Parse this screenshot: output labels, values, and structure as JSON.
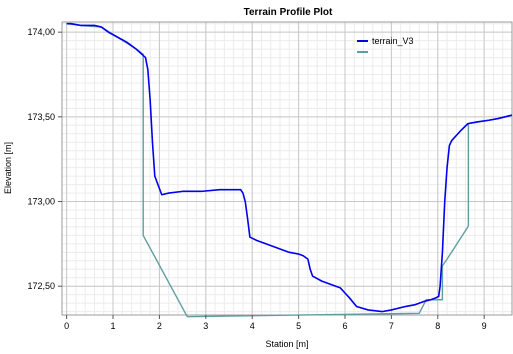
{
  "chart_data": {
    "type": "line",
    "title": "Terrain Profile Plot",
    "xlabel": "Station [m]",
    "ylabel": "Elevation [m]",
    "xlim": [
      -0.1,
      9.6
    ],
    "ylim": [
      172.33,
      174.06
    ],
    "x_ticks": [
      0,
      1,
      2,
      3,
      4,
      5,
      6,
      7,
      8,
      9
    ],
    "x_tick_labels": [
      "0",
      "1",
      "2",
      "3",
      "4",
      "5",
      "6",
      "7",
      "8",
      "9"
    ],
    "y_ticks": [
      172.5,
      173.0,
      173.5,
      174.0
    ],
    "y_tick_labels": [
      "172,50",
      "173,00",
      "173,50",
      "174,00"
    ],
    "grid": true,
    "legend_position": "top-right",
    "series": [
      {
        "name": "terrain_V3",
        "color": "#0000ee",
        "points": [
          [
            0.0,
            174.05
          ],
          [
            0.1,
            174.05
          ],
          [
            0.3,
            174.04
          ],
          [
            0.6,
            174.04
          ],
          [
            0.75,
            174.03
          ],
          [
            0.9,
            174.0
          ],
          [
            1.1,
            173.97
          ],
          [
            1.3,
            173.94
          ],
          [
            1.5,
            173.9
          ],
          [
            1.62,
            173.87
          ],
          [
            1.7,
            173.85
          ],
          [
            1.75,
            173.78
          ],
          [
            1.8,
            173.6
          ],
          [
            1.85,
            173.35
          ],
          [
            1.9,
            173.15
          ],
          [
            2.05,
            173.04
          ],
          [
            2.2,
            173.05
          ],
          [
            2.5,
            173.06
          ],
          [
            2.9,
            173.06
          ],
          [
            3.3,
            173.07
          ],
          [
            3.6,
            173.07
          ],
          [
            3.75,
            173.07
          ],
          [
            3.8,
            173.05
          ],
          [
            3.85,
            173.0
          ],
          [
            3.9,
            172.9
          ],
          [
            3.95,
            172.79
          ],
          [
            4.1,
            172.77
          ],
          [
            4.3,
            172.75
          ],
          [
            4.6,
            172.72
          ],
          [
            4.8,
            172.7
          ],
          [
            5.0,
            172.69
          ],
          [
            5.1,
            172.68
          ],
          [
            5.2,
            172.66
          ],
          [
            5.25,
            172.6
          ],
          [
            5.3,
            172.56
          ],
          [
            5.5,
            172.53
          ],
          [
            5.7,
            172.51
          ],
          [
            5.9,
            172.49
          ],
          [
            6.0,
            172.46
          ],
          [
            6.1,
            172.43
          ],
          [
            6.25,
            172.38
          ],
          [
            6.5,
            172.36
          ],
          [
            6.8,
            172.35
          ],
          [
            7.0,
            172.36
          ],
          [
            7.3,
            172.38
          ],
          [
            7.5,
            172.39
          ],
          [
            7.7,
            172.41
          ],
          [
            7.85,
            172.42
          ],
          [
            7.95,
            172.43
          ],
          [
            8.02,
            172.44
          ],
          [
            8.05,
            172.5
          ],
          [
            8.1,
            172.7
          ],
          [
            8.15,
            173.0
          ],
          [
            8.2,
            173.2
          ],
          [
            8.25,
            173.33
          ],
          [
            8.3,
            173.36
          ],
          [
            8.5,
            173.42
          ],
          [
            8.65,
            173.46
          ],
          [
            8.85,
            173.47
          ],
          [
            9.1,
            173.48
          ],
          [
            9.3,
            173.49
          ],
          [
            9.6,
            173.51
          ]
        ]
      },
      {
        "name": "",
        "color": "#5f9ea0",
        "points": [
          [
            0.0,
            174.05
          ],
          [
            0.3,
            174.04
          ],
          [
            0.75,
            174.03
          ],
          [
            1.1,
            173.97
          ],
          [
            1.5,
            173.9
          ],
          [
            1.65,
            173.87
          ],
          [
            1.65,
            172.8
          ],
          [
            2.6,
            172.32
          ],
          [
            7.6,
            172.34
          ],
          [
            7.75,
            172.42
          ],
          [
            8.1,
            172.42
          ],
          [
            8.1,
            172.62
          ],
          [
            8.2,
            172.66
          ],
          [
            8.65,
            172.85
          ],
          [
            8.66,
            172.86
          ],
          [
            8.66,
            173.46
          ],
          [
            8.85,
            173.47
          ],
          [
            9.1,
            173.48
          ],
          [
            9.3,
            173.49
          ],
          [
            9.6,
            173.51
          ]
        ]
      }
    ]
  }
}
